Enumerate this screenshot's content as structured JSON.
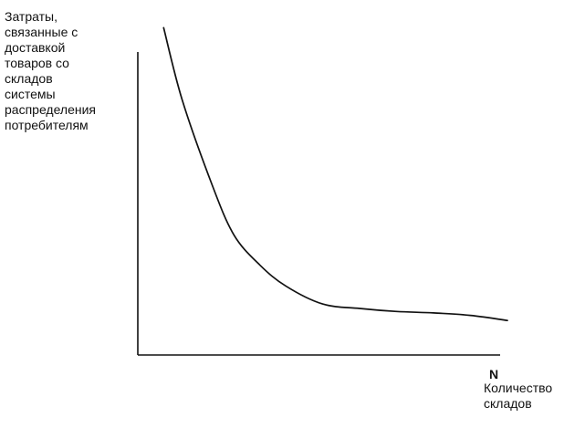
{
  "chart_data": {
    "type": "line",
    "ylabel_lines": [
      "Затраты,",
      "связанные с",
      "доставкой",
      "товаров со",
      "складов",
      "системы",
      "распределения",
      "потребителям"
    ],
    "x_tick": "N",
    "xlabel_lines": [
      "Количество",
      "складов"
    ],
    "xlim": [
      0,
      100
    ],
    "ylim": [
      0,
      100
    ],
    "grid": false,
    "series": [
      {
        "x": [
          7,
          12,
          20,
          26,
          33,
          40,
          50,
          60,
          70,
          80,
          90,
          100
        ],
        "y": [
          109,
          85,
          57,
          40,
          30,
          23,
          17,
          15.5,
          14.5,
          14,
          13.2,
          11.5
        ]
      }
    ],
    "colors": {
      "axis": "#111111",
      "curve": "#111111",
      "text": "#111111"
    }
  }
}
